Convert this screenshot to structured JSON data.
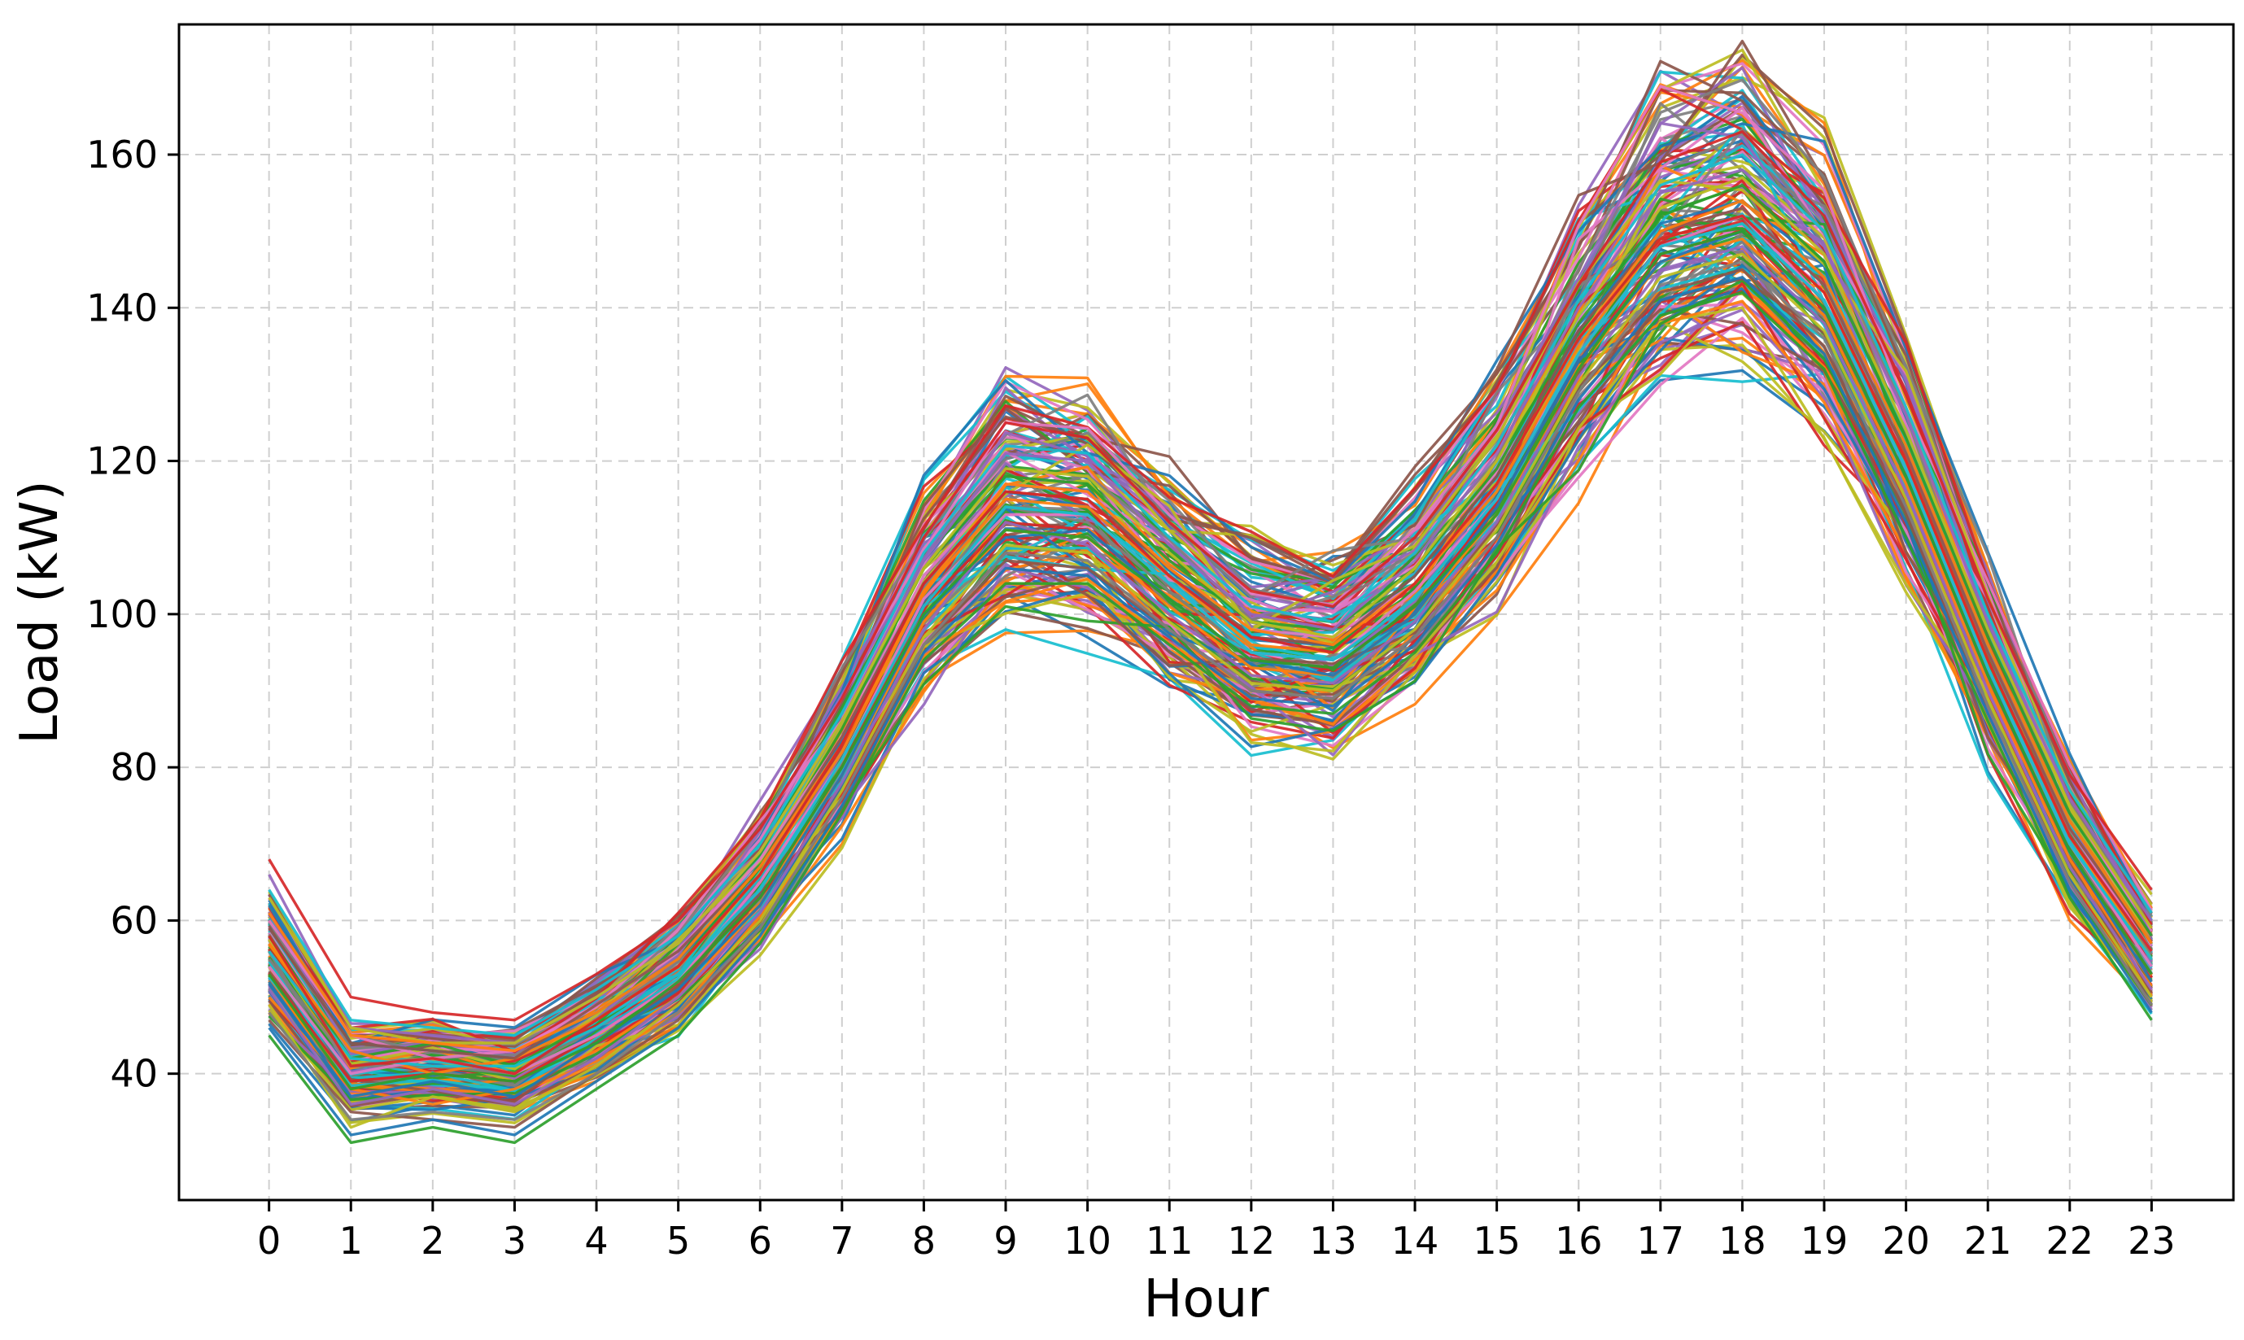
{
  "chart_data": {
    "type": "line",
    "title": "",
    "xlabel": "Hour",
    "ylabel": "Load (kW)",
    "x": [
      0,
      1,
      2,
      3,
      4,
      5,
      6,
      7,
      8,
      9,
      10,
      11,
      12,
      13,
      14,
      15,
      16,
      17,
      18,
      19,
      20,
      21,
      22,
      23
    ],
    "x_ticks": [
      "0",
      "1",
      "2",
      "3",
      "4",
      "5",
      "6",
      "7",
      "8",
      "9",
      "10",
      "11",
      "12",
      "13",
      "14",
      "15",
      "16",
      "17",
      "18",
      "19",
      "20",
      "21",
      "22",
      "23"
    ],
    "y_ticks": [
      "40",
      "60",
      "80",
      "100",
      "120",
      "140",
      "160"
    ],
    "xlim": [
      -1.1,
      24.0
    ],
    "ylim": [
      23.5,
      177
    ],
    "grid": true,
    "legend": "none",
    "palette": [
      "#1f77b4",
      "#ff7f0e",
      "#2ca02c",
      "#d62728",
      "#9467bd",
      "#8c564b",
      "#e377c2",
      "#7f7f7f",
      "#bcbd22",
      "#17becf"
    ],
    "mean_profile": [
      55,
      40,
      41,
      40,
      46,
      53,
      65,
      82,
      103,
      114,
      113,
      104,
      96,
      95,
      103,
      116,
      135,
      149,
      152,
      142,
      120,
      94,
      71,
      55
    ],
    "series": [
      {
        "values": [
          62,
          44,
          43,
          42,
          48,
          55,
          66,
          83,
          104,
          116,
          114,
          105,
          97,
          96,
          105,
          118,
          137,
          151,
          154,
          144,
          122,
          96,
          73,
          57
        ]
      },
      {
        "values": [
          50,
          38,
          36,
          38,
          43,
          50,
          62,
          79,
          99,
          111,
          110,
          101,
          93,
          92,
          100,
          113,
          132,
          146,
          149,
          139,
          117,
          91,
          68,
          52
        ]
      },
      {
        "values": [
          58,
          42,
          44,
          41,
          47,
          54,
          67,
          85,
          106,
          118,
          117,
          107,
          99,
          98,
          106,
          119,
          138,
          152,
          156,
          146,
          123,
          97,
          74,
          58
        ]
      },
      {
        "values": [
          53,
          39,
          40,
          39,
          45,
          52,
          63,
          80,
          101,
          112,
          111,
          102,
          94,
          93,
          101,
          114,
          133,
          147,
          150,
          140,
          118,
          92,
          69,
          53
        ]
      },
      {
        "values": [
          66,
          46,
          45,
          44,
          50,
          57,
          69,
          86,
          107,
          121,
          120,
          109,
          100,
          98,
          107,
          121,
          140,
          155,
          158,
          148,
          126,
          99,
          76,
          60
        ]
      },
      {
        "values": [
          47,
          35,
          34,
          33,
          40,
          47,
          59,
          76,
          96,
          107,
          106,
          98,
          90,
          89,
          97,
          110,
          129,
          142,
          145,
          135,
          113,
          88,
          65,
          49
        ]
      },
      {
        "values": [
          60,
          45,
          42,
          43,
          49,
          56,
          68,
          84,
          105,
          117,
          116,
          106,
          98,
          97,
          104,
          117,
          136,
          150,
          153,
          143,
          121,
          95,
          72,
          56
        ]
      },
      {
        "values": [
          55,
          41,
          41,
          40,
          46,
          53,
          64,
          81,
          102,
          114,
          112,
          103,
          95,
          94,
          102,
          115,
          134,
          148,
          151,
          141,
          119,
          93,
          70,
          54
        ]
      },
      {
        "values": [
          49,
          33,
          37,
          35,
          41,
          49,
          60,
          77,
          97,
          109,
          108,
          99,
          91,
          90,
          98,
          111,
          130,
          144,
          147,
          137,
          115,
          89,
          66,
          50
        ]
      },
      {
        "values": [
          64,
          47,
          46,
          45,
          51,
          58,
          70,
          87,
          108,
          122,
          121,
          110,
          101,
          99,
          108,
          122,
          141,
          156,
          160,
          150,
          127,
          100,
          77,
          61
        ]
      },
      {
        "values": [
          52,
          37,
          39,
          37,
          44,
          51,
          62,
          79,
          100,
          110,
          111,
          102,
          94,
          92,
          100,
          114,
          133,
          146,
          150,
          140,
          118,
          92,
          69,
          52
        ]
      },
      {
        "values": [
          57,
          43,
          40,
          42,
          47,
          54,
          66,
          82,
          103,
          115,
          114,
          105,
          96,
          95,
          104,
          116,
          135,
          149,
          152,
          142,
          120,
          94,
          71,
          55
        ]
      },
      {
        "values": [
          45,
          31,
          33,
          31,
          38,
          45,
          57,
          74,
          94,
          104,
          104,
          96,
          88,
          87,
          95,
          108,
          127,
          139,
          142,
          132,
          110,
          86,
          63,
          47
        ]
      },
      {
        "values": [
          68,
          50,
          48,
          47,
          53,
          60,
          72,
          89,
          110,
          125,
          123,
          112,
          103,
          101,
          110,
          124,
          143,
          159,
          163,
          152,
          129,
          102,
          79,
          64
        ]
      },
      {
        "values": [
          51,
          36,
          38,
          36,
          42,
          50,
          61,
          78,
          98,
          112,
          109,
          100,
          92,
          91,
          99,
          112,
          131,
          145,
          148,
          138,
          116,
          90,
          67,
          51
        ]
      },
      {
        "values": [
          59,
          44,
          43,
          42,
          49,
          56,
          67,
          84,
          104,
          116,
          115,
          106,
          97,
          96,
          105,
          118,
          137,
          150,
          153,
          143,
          121,
          95,
          72,
          57
        ]
      },
      {
        "values": [
          54,
          40,
          42,
          40,
          45,
          52,
          65,
          81,
          102,
          113,
          113,
          104,
          95,
          94,
          103,
          115,
          134,
          148,
          152,
          141,
          119,
          93,
          70,
          54
        ]
      },
      {
        "values": [
          48,
          34,
          35,
          34,
          40,
          48,
          59,
          76,
          96,
          108,
          107,
          98,
          90,
          89,
          97,
          110,
          129,
          143,
          146,
          136,
          114,
          88,
          65,
          49
        ]
      },
      {
        "values": [
          63,
          46,
          44,
          44,
          50,
          57,
          69,
          86,
          106,
          119,
          118,
          108,
          99,
          97,
          106,
          120,
          139,
          153,
          157,
          147,
          124,
          98,
          75,
          59
        ]
      },
      {
        "values": [
          56,
          42,
          41,
          41,
          46,
          53,
          64,
          81,
          101,
          114,
          113,
          104,
          95,
          94,
          102,
          115,
          134,
          148,
          151,
          141,
          119,
          93,
          70,
          55
        ]
      },
      {
        "values": [
          46,
          32,
          34,
          32,
          39,
          46,
          58,
          75,
          95,
          106,
          105,
          97,
          89,
          88,
          96,
          109,
          128,
          141,
          144,
          134,
          112,
          87,
          64,
          48
        ]
      },
      {
        "values": [
          61,
          45,
          44,
          43,
          48,
          55,
          67,
          83,
          103,
          117,
          116,
          106,
          98,
          96,
          104,
          117,
          136,
          150,
          154,
          144,
          122,
          96,
          73,
          57
        ]
      },
      {
        "values": [
          53,
          38,
          40,
          39,
          44,
          52,
          63,
          80,
          100,
          111,
          110,
          102,
          94,
          93,
          101,
          113,
          132,
          147,
          150,
          140,
          118,
          92,
          69,
          53
        ]
      },
      {
        "values": [
          58,
          41,
          42,
          40,
          47,
          54,
          66,
          83,
          104,
          116,
          115,
          105,
          97,
          95,
          104,
          117,
          136,
          149,
          152,
          142,
          120,
          94,
          71,
          56
        ]
      }
    ]
  }
}
